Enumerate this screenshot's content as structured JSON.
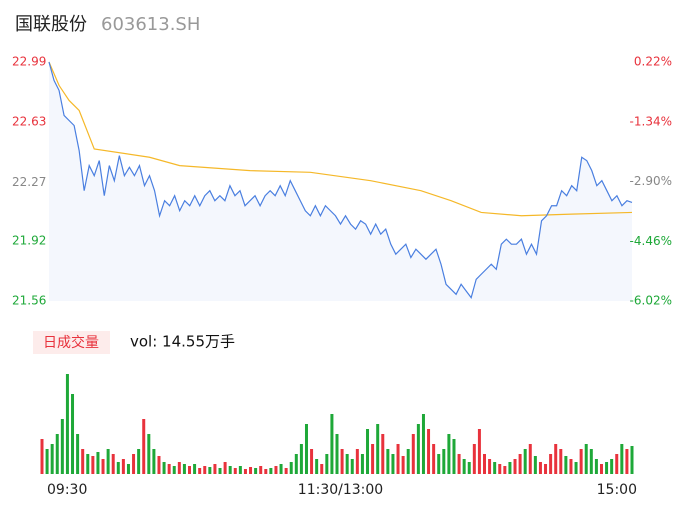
{
  "chart_data": {
    "type": "intraday",
    "title": "国联股份",
    "subtitle": "603613.SH",
    "ylim": [
      21.56,
      22.99
    ],
    "yticks": [
      22.99,
      22.63,
      22.27,
      21.92,
      21.56
    ],
    "y2lim": [
      -6.02,
      0.22
    ],
    "y2ticks": [
      {
        "value": 0.22,
        "label": "0.22%"
      },
      {
        "value": -1.34,
        "label": "-1.34%"
      },
      {
        "value": -2.9,
        "label": "-2.90%"
      },
      {
        "value": -4.46,
        "label": "-4.46%"
      },
      {
        "value": -6.02,
        "label": "-6.02%"
      }
    ],
    "ytick_colors": [
      "#e8323c",
      "#e8323c",
      "#888888",
      "#1ea838",
      "#1ea838"
    ],
    "xlim": [
      0,
      116
    ],
    "xticks": [
      {
        "value": 0,
        "label": "09:30"
      },
      {
        "value": 58,
        "label": "11:30/13:00"
      },
      {
        "value": 116,
        "label": "15:00"
      }
    ],
    "price": {
      "color": "#4a7fe0",
      "fill": "#f4f7fd",
      "values": [
        22.99,
        22.88,
        22.82,
        22.67,
        22.64,
        22.61,
        22.46,
        22.22,
        22.37,
        22.31,
        22.4,
        22.19,
        22.37,
        22.28,
        22.43,
        22.31,
        22.36,
        22.31,
        22.37,
        22.25,
        22.31,
        22.22,
        22.07,
        22.16,
        22.13,
        22.19,
        22.1,
        22.16,
        22.13,
        22.19,
        22.13,
        22.19,
        22.22,
        22.16,
        22.19,
        22.16,
        22.25,
        22.19,
        22.22,
        22.13,
        22.16,
        22.19,
        22.13,
        22.19,
        22.22,
        22.19,
        22.25,
        22.19,
        22.28,
        22.22,
        22.16,
        22.1,
        22.07,
        22.13,
        22.07,
        22.13,
        22.1,
        22.07,
        22.02,
        22.07,
        22.02,
        21.99,
        22.04,
        22.02,
        21.96,
        22.02,
        21.96,
        21.99,
        21.9,
        21.84,
        21.87,
        21.9,
        21.82,
        21.87,
        21.84,
        21.81,
        21.84,
        21.87,
        21.78,
        21.66,
        21.63,
        21.6,
        21.66,
        21.62,
        21.58,
        21.69,
        21.72,
        21.75,
        21.78,
        21.75,
        21.9,
        21.93,
        21.9,
        21.9,
        21.93,
        21.84,
        21.9,
        21.84,
        22.04,
        22.07,
        22.13,
        22.13,
        22.22,
        22.19,
        22.25,
        22.22,
        22.42,
        22.4,
        22.34,
        22.25,
        22.28,
        22.22,
        22.16,
        22.19,
        22.13,
        22.16,
        22.15
      ]
    },
    "average": {
      "color": "#f5b829",
      "x": [
        0,
        2,
        4,
        6,
        9,
        20,
        26,
        40,
        52,
        64,
        74,
        80,
        86,
        94,
        104,
        116
      ],
      "values": [
        22.99,
        22.85,
        22.76,
        22.7,
        22.47,
        22.42,
        22.37,
        22.34,
        22.33,
        22.28,
        22.22,
        22.16,
        22.09,
        22.07,
        22.08,
        22.09
      ]
    },
    "volume_title": "日成交量",
    "volume_label": "vol: 14.55万手",
    "up_color": "#e8323c",
    "down_color": "#1ea838",
    "volume": {
      "ylim": [
        0,
        6300
      ],
      "values": [
        2100,
        1500,
        1800,
        2400,
        3300,
        6000,
        4800,
        2400,
        1500,
        1200,
        1080,
        1320,
        900,
        1500,
        1200,
        720,
        900,
        600,
        1200,
        1500,
        3300,
        2400,
        1500,
        1080,
        720,
        600,
        480,
        720,
        600,
        480,
        600,
        360,
        480,
        420,
        600,
        360,
        720,
        480,
        360,
        480,
        300,
        420,
        360,
        480,
        300,
        360,
        480,
        600,
        360,
        720,
        1200,
        1800,
        3000,
        1500,
        900,
        600,
        1200,
        3600,
        2400,
        1500,
        1200,
        900,
        1500,
        1200,
        2700,
        1800,
        3000,
        2400,
        1500,
        1200,
        1800,
        1080,
        1500,
        2400,
        3000,
        3600,
        2700,
        1800,
        1200,
        1500,
        2400,
        2100,
        1200,
        900,
        720,
        1800,
        2700,
        1200,
        900,
        720,
        600,
        480,
        720,
        900,
        1200,
        1500,
        1800,
        1080,
        720,
        600,
        1200,
        1800,
        1500,
        1080,
        900,
        720,
        1500,
        1800,
        1500,
        900,
        600,
        720,
        900,
        1200,
        1800,
        1500,
        1680
      ]
    }
  }
}
